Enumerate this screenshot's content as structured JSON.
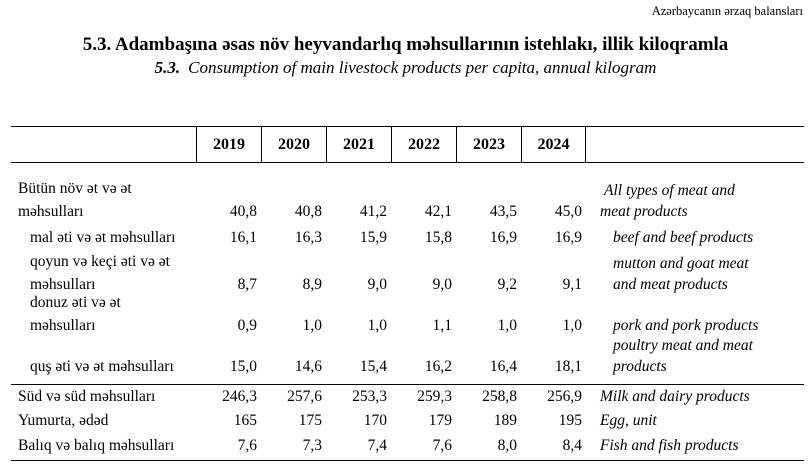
{
  "header_note": "Azərbaycanın ərzaq balansları",
  "title": {
    "number": "5.3.",
    "az": "Adambaşına əsas növ heyvandarlıq məhsullarının istehlakı, illik kiloqramla",
    "en": "Consumption of main livestock products per capita, annual kilogram"
  },
  "table": {
    "years": [
      "2019",
      "2020",
      "2021",
      "2022",
      "2023",
      "2024"
    ],
    "rows": [
      {
        "az": [
          "Bütün növ ət və ət",
          "məhsulları"
        ],
        "values": [
          "40,8",
          "40,8",
          "41,2",
          "42,1",
          "43,5",
          "45,0"
        ],
        "en": [
          "All types of meat and",
          "meat  products"
        ]
      },
      {
        "az": [
          "mal əti və ət məhsulları"
        ],
        "values": [
          "16,1",
          "16,3",
          "15,9",
          "15,8",
          "16,9",
          "16,9"
        ],
        "en": [
          "beef and beef products"
        ]
      },
      {
        "az": [
          "qoyun və keçi əti və ət",
          "məhsulları"
        ],
        "values": [
          "8,7",
          "8,9",
          "9,0",
          "9,0",
          "9,2",
          "9,1"
        ],
        "en": [
          "mutton and goat meat",
          "and meat products"
        ]
      },
      {
        "az": [
          "donuz əti və ət",
          "məhsulları"
        ],
        "values": [
          "0,9",
          "1,0",
          "1,0",
          "1,1",
          "1,0",
          "1,0"
        ],
        "en": [
          "pork and pork products"
        ]
      },
      {
        "az": [
          "quş əti və ət məhsulları"
        ],
        "values": [
          "15,0",
          "14,6",
          "15,4",
          "16,2",
          "16,4",
          "18,1"
        ],
        "en": [
          "poultry meat and meat",
          "products"
        ]
      },
      {
        "az": [
          "Süd və süd məhsulları"
        ],
        "values": [
          "246,3",
          "257,6",
          "253,3",
          "259,3",
          "258,8",
          "256,9"
        ],
        "en": [
          "Milk and dairy products"
        ]
      },
      {
        "az": [
          "Yumurta, ədəd"
        ],
        "values": [
          "165",
          "175",
          "170",
          "179",
          "189",
          "195"
        ],
        "en": [
          "Egg, unit"
        ]
      },
      {
        "az": [
          "Balıq və balıq məhsulları"
        ],
        "values": [
          "7,6",
          "7,3",
          "7,4",
          "7,6",
          "8,0",
          "8,4"
        ],
        "en": [
          "Fish and fish products"
        ]
      }
    ]
  }
}
